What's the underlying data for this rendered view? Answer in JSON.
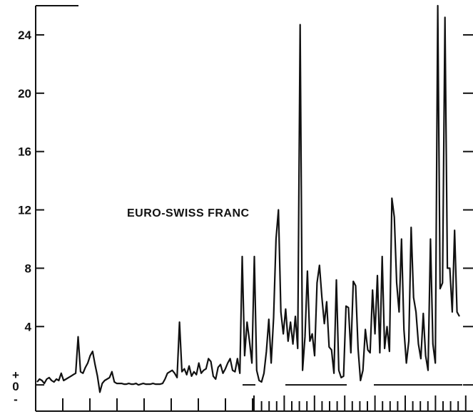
{
  "chart_data": {
    "type": "line",
    "title": "",
    "xlabel": "",
    "ylabel": "",
    "annotation": "EURO-SWISS FRANC",
    "ylim": [
      -1.8,
      26
    ],
    "y_ticks": [
      0,
      4,
      8,
      12,
      16,
      20,
      24
    ],
    "y_tick_labels": [
      "0",
      "4",
      "8",
      "12",
      "16",
      "20",
      "24"
    ],
    "zero_markers": [
      "+",
      "-"
    ],
    "grid": false,
    "color": "#111111",
    "series": [
      {
        "values": [
          0.2,
          0.4,
          0.3,
          0.1,
          0.4,
          0.5,
          0.3,
          0.2,
          0.4,
          0.3,
          0.8,
          0.3,
          0.4,
          0.5,
          0.6,
          0.7,
          0.8,
          3.3,
          0.9,
          0.8,
          1.2,
          1.5,
          2.0,
          2.3,
          1.4,
          0.6,
          -0.5,
          0.1,
          0.3,
          0.4,
          0.5,
          0.9,
          0.2,
          0.1,
          0.1,
          0.1,
          0.05,
          0.05,
          0.1,
          0.05,
          0.05,
          0.1,
          0.0,
          0.05,
          0.1,
          0.05,
          0.05,
          0.05,
          0.1,
          0.05,
          0.05,
          0.05,
          0.1,
          0.4,
          0.8,
          0.9,
          1.0,
          0.8,
          0.5,
          4.3,
          0.9,
          1.1,
          0.7,
          1.3,
          0.6,
          0.9,
          0.7,
          1.5,
          0.8,
          1.0,
          1.1,
          1.8,
          1.6,
          0.6,
          0.4,
          1.2,
          1.4,
          0.8,
          1.1,
          1.5,
          1.8,
          1.0,
          0.9,
          1.8,
          0.8,
          8.8,
          2.0,
          4.3,
          3.0,
          1.5,
          8.8,
          1.0,
          0.3,
          0.2,
          0.8,
          2.3,
          4.5,
          1.5,
          4.6,
          10.0,
          12.0,
          5.0,
          3.5,
          5.2,
          3.0,
          4.3,
          2.8,
          4.7,
          2.5,
          24.7,
          1.0,
          3.3,
          7.8,
          3.0,
          3.5,
          2.0,
          7.0,
          8.2,
          6.0,
          4.2,
          5.7,
          2.6,
          2.4,
          0.8,
          7.2,
          1.0,
          0.5,
          0.6,
          5.4,
          5.3,
          2.2,
          7.1,
          6.8,
          2.5,
          0.3,
          1.0,
          3.8,
          2.4,
          2.2,
          6.5,
          3.5,
          7.5,
          2.2,
          8.8,
          2.5,
          4.0,
          2.3,
          12.8,
          11.5,
          7.0,
          5.0,
          10.0,
          3.8,
          1.5,
          3.0,
          10.8,
          6.0,
          5.0,
          2.8,
          1.8,
          4.9,
          2.0,
          1.0,
          10.0,
          2.8,
          1.5,
          26.0,
          6.6,
          7.0,
          25.2,
          8.0,
          8.0,
          5.0,
          10.6,
          5.0,
          4.7
        ]
      }
    ]
  }
}
